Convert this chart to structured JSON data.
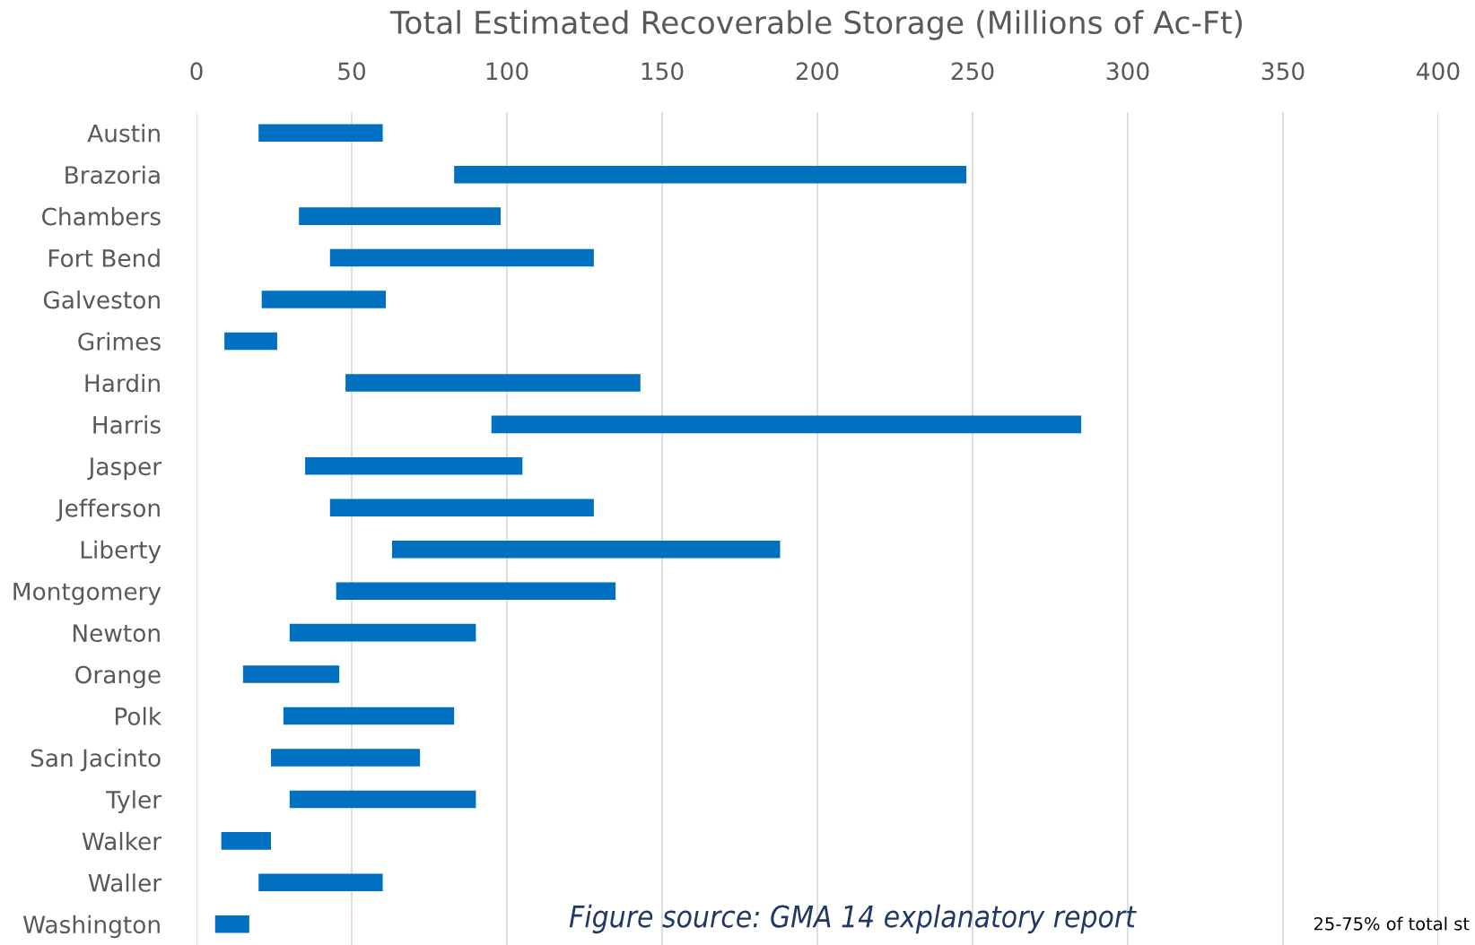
{
  "chart_data": {
    "type": "bar",
    "orientation": "horizontal",
    "title": "Total Estimated Recoverable Storage (Millions of Ac-Ft)",
    "categories": [
      "Austin",
      "Brazoria",
      "Chambers",
      "Fort Bend",
      "Galveston",
      "Grimes",
      "Hardin",
      "Harris",
      "Jasper",
      "Jefferson",
      "Liberty",
      "Montgomery",
      "Newton",
      "Orange",
      "Polk",
      "San Jacinto",
      "Tyler",
      "Walker",
      "Waller",
      "Washington"
    ],
    "base": [
      20,
      83,
      33,
      43,
      21,
      9,
      48,
      95,
      35,
      43,
      63,
      45,
      30,
      15,
      28,
      24,
      30,
      8,
      20,
      6
    ],
    "values": [
      40,
      165,
      65,
      85,
      40,
      17,
      95,
      190,
      70,
      85,
      125,
      90,
      60,
      31,
      55,
      48,
      60,
      16,
      40,
      11
    ],
    "color": "#0070c0",
    "xlim": [
      0,
      400
    ],
    "xticks": [
      0,
      50,
      100,
      150,
      200,
      250,
      300,
      350,
      400
    ],
    "grid": "x",
    "annotations": [
      "Figure source: GMA 14 explanatory report",
      "25-75% of total st"
    ]
  }
}
